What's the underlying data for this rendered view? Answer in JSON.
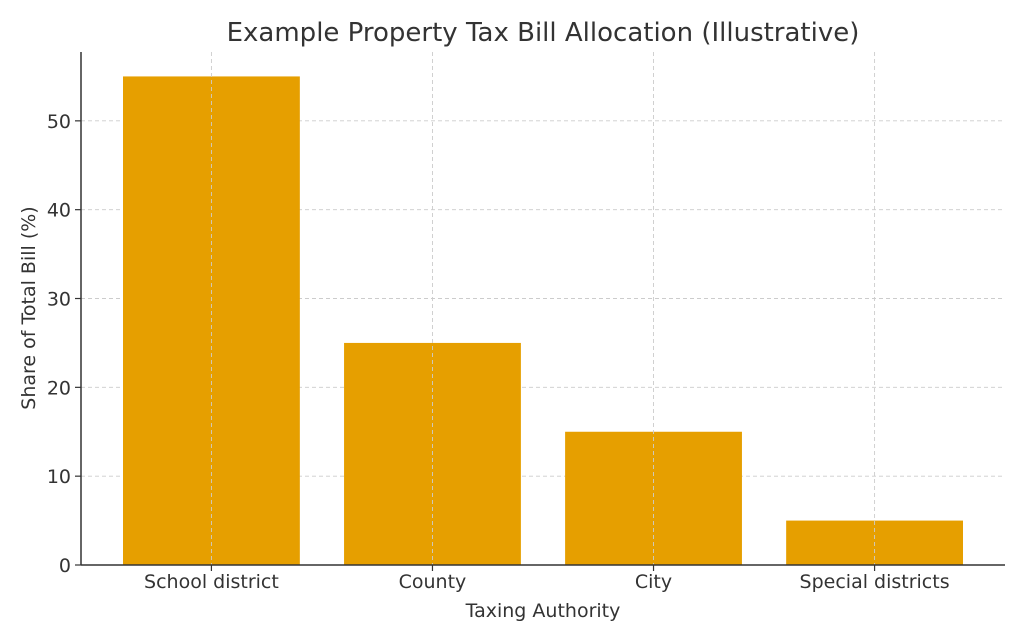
{
  "chart_data": {
    "type": "bar",
    "title": "Example Property Tax Bill Allocation (Illustrative)",
    "xlabel": "Taxing Authority",
    "ylabel": "Share of Total Bill (%)",
    "categories": [
      "School district",
      "County",
      "City",
      "Special districts"
    ],
    "values": [
      55,
      25,
      15,
      5
    ],
    "ylim": [
      0,
      57.75
    ],
    "yticks": [
      0,
      10,
      20,
      30,
      40,
      50
    ],
    "grid": true,
    "bar_color": "#E69F00"
  }
}
